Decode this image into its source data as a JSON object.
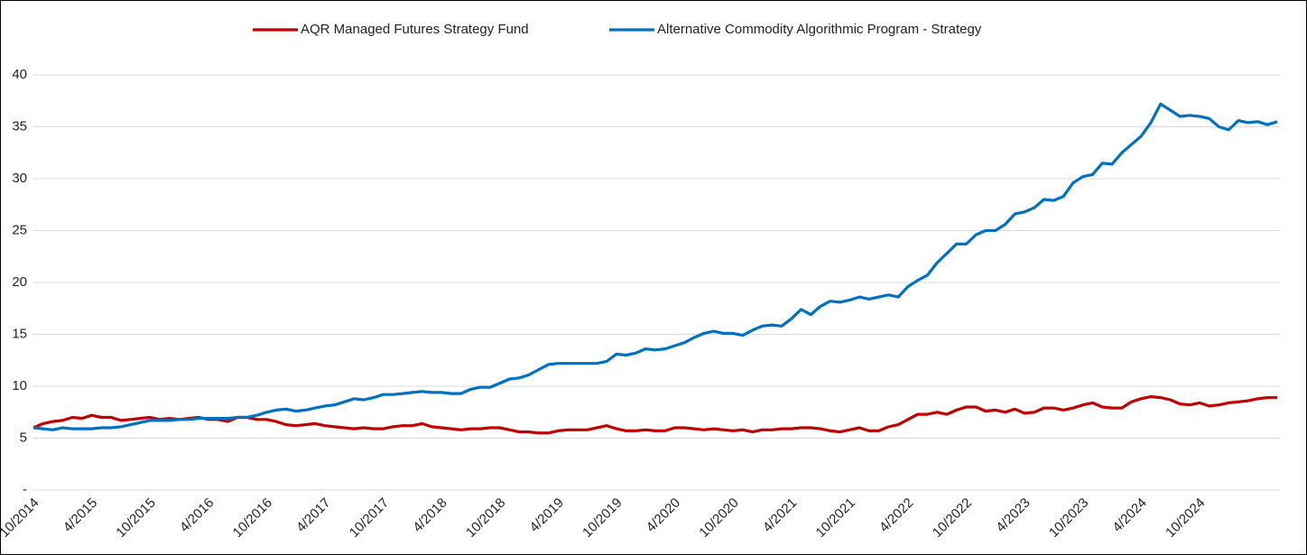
{
  "chart_data": {
    "type": "line",
    "categories": [
      "10/2014",
      null,
      null,
      null,
      null,
      null,
      "4/2015",
      null,
      null,
      null,
      null,
      null,
      "10/2015",
      null,
      null,
      null,
      null,
      null,
      "4/2016",
      null,
      null,
      null,
      null,
      null,
      "10/2016",
      null,
      null,
      null,
      null,
      null,
      "4/2017",
      null,
      null,
      null,
      null,
      null,
      "10/2017",
      null,
      null,
      null,
      null,
      null,
      "4/2018",
      null,
      null,
      null,
      null,
      null,
      "10/2018",
      null,
      null,
      null,
      null,
      null,
      "4/2019",
      null,
      null,
      null,
      null,
      null,
      "10/2019",
      null,
      null,
      null,
      null,
      null,
      "4/2020",
      null,
      null,
      null,
      null,
      null,
      "10/2020",
      null,
      null,
      null,
      null,
      null,
      "4/2021",
      null,
      null,
      null,
      null,
      null,
      "10/2021",
      null,
      null,
      null,
      null,
      null,
      "4/2022",
      null,
      null,
      null,
      null,
      null,
      "10/2022",
      null,
      null,
      null,
      null,
      null,
      "4/2023",
      null,
      null,
      null,
      null,
      null,
      "10/2023",
      null,
      null,
      null,
      null,
      null,
      "4/2024",
      null,
      null,
      null,
      null,
      null,
      "10/2024",
      null,
      null,
      null,
      null,
      null,
      null,
      null,
      null
    ],
    "series": [
      {
        "name": "AQR Managed Futures Strategy Fund",
        "color": "#c00000",
        "values": [
          6.0,
          6.4,
          6.6,
          6.7,
          7.0,
          6.9,
          7.2,
          7.0,
          7.0,
          6.7,
          6.8,
          6.9,
          7.0,
          6.8,
          6.9,
          6.8,
          6.9,
          7.0,
          6.8,
          6.8,
          6.6,
          7.0,
          7.0,
          6.8,
          6.8,
          6.6,
          6.3,
          6.2,
          6.3,
          6.4,
          6.2,
          6.1,
          6.0,
          5.9,
          6.0,
          5.9,
          5.9,
          6.1,
          6.2,
          6.2,
          6.4,
          6.1,
          6.0,
          5.9,
          5.8,
          5.9,
          5.9,
          6.0,
          6.0,
          5.8,
          5.6,
          5.6,
          5.5,
          5.5,
          5.7,
          5.8,
          5.8,
          5.8,
          6.0,
          6.2,
          5.9,
          5.7,
          5.7,
          5.8,
          5.7,
          5.7,
          6.0,
          6.0,
          5.9,
          5.8,
          5.9,
          5.8,
          5.7,
          5.8,
          5.6,
          5.8,
          5.8,
          5.9,
          5.9,
          6.0,
          6.0,
          5.9,
          5.7,
          5.6,
          5.8,
          6.0,
          5.7,
          5.7,
          6.1,
          6.3,
          6.8,
          7.3,
          7.3,
          7.5,
          7.3,
          7.7,
          8.0,
          8.0,
          7.6,
          7.7,
          7.5,
          7.8,
          7.4,
          7.5,
          7.9,
          7.9,
          7.7,
          7.9,
          8.2,
          8.4,
          8.0,
          7.9,
          7.9,
          8.5,
          8.8,
          9.0,
          8.9,
          8.7,
          8.3,
          8.2,
          8.4,
          8.1,
          8.2,
          8.4,
          8.5,
          8.6,
          8.8,
          8.9,
          8.9
        ]
      },
      {
        "name": "Alternative Commodity Algorithmic Program - Strategy",
        "color": "#0070c0",
        "values": [
          6.0,
          5.9,
          5.8,
          6.0,
          5.9,
          5.9,
          5.9,
          6.0,
          6.0,
          6.1,
          6.3,
          6.5,
          6.7,
          6.7,
          6.7,
          6.8,
          6.8,
          6.9,
          6.9,
          6.9,
          6.9,
          7.0,
          7.0,
          7.2,
          7.5,
          7.7,
          7.8,
          7.6,
          7.7,
          7.9,
          8.1,
          8.2,
          8.5,
          8.8,
          8.7,
          8.9,
          9.2,
          9.2,
          9.3,
          9.4,
          9.5,
          9.4,
          9.4,
          9.3,
          9.3,
          9.7,
          9.9,
          9.9,
          10.3,
          10.7,
          10.8,
          11.1,
          11.6,
          12.1,
          12.2,
          12.2,
          12.2,
          12.2,
          12.2,
          12.4,
          13.1,
          13.0,
          13.2,
          13.6,
          13.5,
          13.6,
          13.9,
          14.2,
          14.7,
          15.1,
          15.3,
          15.1,
          15.1,
          14.9,
          15.4,
          15.8,
          15.9,
          15.8,
          16.5,
          17.4,
          16.9,
          17.7,
          18.2,
          18.1,
          18.3,
          18.6,
          18.4,
          18.6,
          18.8,
          18.6,
          19.6,
          20.2,
          20.7,
          21.9,
          22.8,
          23.7,
          23.7,
          24.6,
          25.0,
          25.0,
          25.6,
          26.6,
          26.8,
          27.2,
          28.0,
          27.9,
          28.3,
          29.6,
          30.2,
          30.4,
          31.5,
          31.4,
          32.5,
          33.3,
          34.1,
          35.4,
          37.2,
          36.6,
          36.0,
          36.1,
          36.0,
          35.8,
          35.0,
          34.7,
          35.6,
          35.4,
          35.5,
          35.2,
          35.5
        ]
      }
    ],
    "ylim": [
      0,
      40
    ],
    "yticks": [
      {
        "value": 0,
        "label": "-"
      },
      5,
      10,
      15,
      20,
      25,
      30,
      35,
      40
    ],
    "grid": true,
    "legend": "top"
  }
}
